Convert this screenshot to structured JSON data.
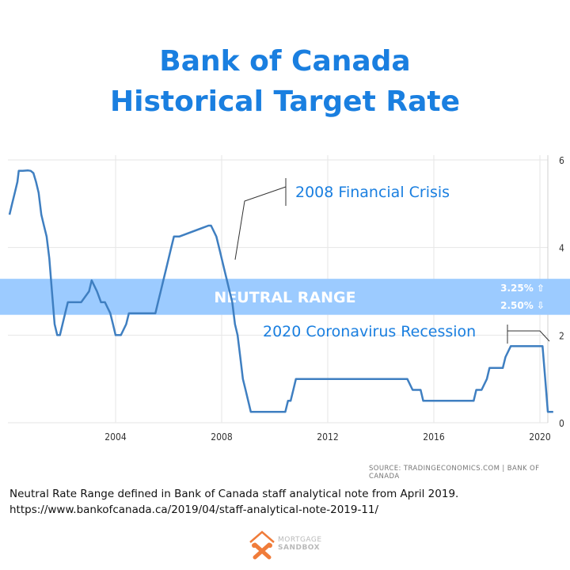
{
  "title": {
    "line1": "Bank of Canada",
    "line2": "Historical Target Rate"
  },
  "chart_data": {
    "type": "line",
    "x_ticks": [
      "2004",
      "2008",
      "2012",
      "2016",
      "2020"
    ],
    "y_ticks": [
      "0",
      "2",
      "4",
      "6"
    ],
    "ylim": [
      0,
      6
    ],
    "grid": true,
    "color": "#3f7fc1",
    "series": [
      {
        "x": [
          2000.0,
          2000.1,
          2000.2,
          2000.3,
          2000.35,
          2000.5,
          2000.7,
          2000.8,
          2000.9,
          2001.0,
          2001.1,
          2001.2,
          2001.3,
          2001.4,
          2001.5,
          2001.6,
          2001.7,
          2001.8,
          2001.9,
          2002.0,
          2002.1,
          2002.2,
          2002.3,
          2002.5,
          2002.6,
          2002.7,
          2003.0,
          2003.1,
          2003.3,
          2003.45,
          2003.6,
          2003.8,
          2003.9,
          2004.0,
          2004.1,
          2004.2,
          2004.4,
          2004.5,
          2004.6,
          2004.8,
          2004.9,
          2005.5,
          2005.6,
          2005.7,
          2005.8,
          2005.9,
          2006.0,
          2006.1,
          2006.2,
          2006.4,
          2007.5,
          2007.6,
          2007.8,
          2007.9,
          2008.0,
          2008.1,
          2008.2,
          2008.3,
          2008.4,
          2008.5,
          2008.6,
          2008.7,
          2008.8,
          2008.9,
          2009.0,
          2009.1,
          2009.2,
          2009.4,
          2010.4,
          2010.5,
          2010.6,
          2010.7,
          2010.8,
          2015.0,
          2015.2,
          2015.5,
          2015.6,
          2017.5,
          2017.6,
          2017.8,
          2018.0,
          2018.1,
          2018.6,
          2018.7,
          2018.9,
          2019.0,
          2020.1,
          2020.2,
          2020.3,
          2020.5
        ],
        "y": [
          4.75,
          5.0,
          5.25,
          5.5,
          5.75,
          5.75,
          5.76,
          5.75,
          5.7,
          5.5,
          5.25,
          4.75,
          4.5,
          4.25,
          3.75,
          3.0,
          2.25,
          2.0,
          2.0,
          2.25,
          2.5,
          2.75,
          2.75,
          2.75,
          2.75,
          2.75,
          3.0,
          3.25,
          3.0,
          2.75,
          2.75,
          2.5,
          2.25,
          2.0,
          2.0,
          2.0,
          2.25,
          2.5,
          2.5,
          2.5,
          2.5,
          2.5,
          2.75,
          3.0,
          3.25,
          3.5,
          3.75,
          4.0,
          4.25,
          4.25,
          4.5,
          4.5,
          4.25,
          4.0,
          3.75,
          3.5,
          3.25,
          3.0,
          2.75,
          2.25,
          2.0,
          1.5,
          1.0,
          0.75,
          0.5,
          0.25,
          0.25,
          0.25,
          0.25,
          0.5,
          0.5,
          0.75,
          1.0,
          1.0,
          0.75,
          0.75,
          0.5,
          0.5,
          0.75,
          0.75,
          1.0,
          1.25,
          1.25,
          1.5,
          1.75,
          1.75,
          1.75,
          1.0,
          0.25,
          0.25
        ]
      }
    ],
    "annotations": {
      "crisis": "2008 Financial Crisis",
      "covid": "2020 Coronavirus Recession"
    },
    "band": {
      "label": "NEUTRAL RANGE",
      "upper_label": "3.25% ⇧",
      "lower_label": "2.50% ⇩",
      "upper": 3.25,
      "lower": 2.5,
      "color": "#9ccbff"
    }
  },
  "source": "SOURCE: TRADINGECONOMICS.COM  |  BANK OF CANADA",
  "note": {
    "line1": "Neutral Rate Range defined in Bank of Canada staff analytical note from April 2019.",
    "line2": "https://www.bankofcanada.ca/2019/04/staff-analytical-note-2019-11/"
  },
  "logo": {
    "line1": "MORTGAGE",
    "line2": "SANDBOX",
    "icon": "mortgage-sandbox-logo-icon"
  }
}
